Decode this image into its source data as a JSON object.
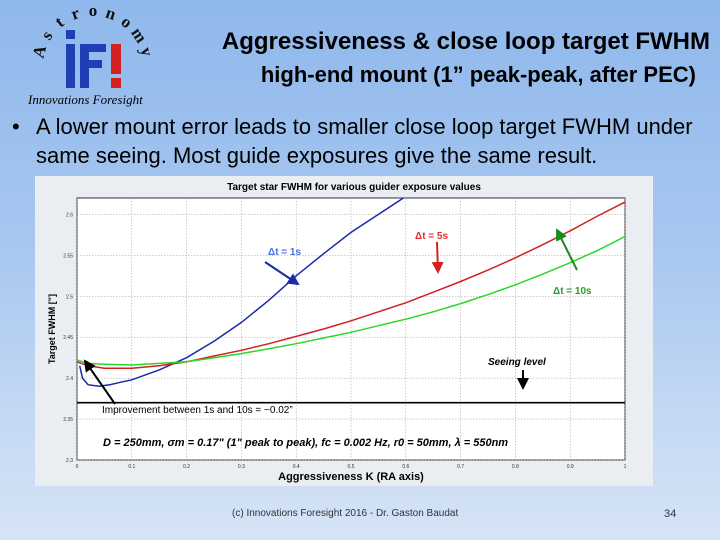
{
  "logo": {
    "arc_letters": [
      "A",
      "s",
      "t",
      "r",
      "o",
      "n",
      "o",
      "m",
      "y"
    ],
    "mark": "iFI",
    "caption": "Innovations Foresight"
  },
  "title": {
    "line1": "Aggressiveness & close loop target FWHM",
    "line2": "high-end mount (1” peak-peak, after PEC)"
  },
  "bullet": {
    "marker": "•",
    "text": "A lower mount error leads to smaller close loop target FWHM under same seeing. Most guide exposures give the same result."
  },
  "chart_data": {
    "type": "line",
    "title": "Target star FWHM for various guider exposure values",
    "xlabel": "Aggressiveness K (RA axis)",
    "ylabel": "Target FWHM [\"]",
    "xlim": [
      0,
      1
    ],
    "ylim": [
      2.3,
      2.62
    ],
    "xticks": [
      0,
      0.1,
      0.2,
      0.3,
      0.4,
      0.5,
      0.6,
      0.7,
      0.8,
      0.9,
      1
    ],
    "xtick_labels": [
      "0",
      "0.1",
      "0.2",
      "0.3",
      "0.4",
      "0.5",
      "0.6",
      "0.7",
      "0.8",
      "0.9",
      "1"
    ],
    "yticks": [
      2.3,
      2.35,
      2.4,
      2.45,
      2.5,
      2.55,
      2.6
    ],
    "ytick_labels": [
      "2.3",
      "2.35",
      "2.4",
      "2.45",
      "2.5",
      "2.55",
      "2.6"
    ],
    "grid": true,
    "series": [
      {
        "name": "Δt = 1s",
        "color": "#1a2aa8",
        "x": [
          0.005,
          0.01,
          0.02,
          0.04,
          0.06,
          0.08,
          0.1,
          0.15,
          0.2,
          0.25,
          0.3,
          0.35,
          0.4,
          0.45,
          0.5,
          0.55,
          0.6,
          0.62
        ],
        "y": [
          2.415,
          2.4,
          2.392,
          2.39,
          2.392,
          2.395,
          2.398,
          2.41,
          2.425,
          2.445,
          2.468,
          2.495,
          2.525,
          2.552,
          2.578,
          2.6,
          2.622,
          2.63
        ]
      },
      {
        "name": "Δt = 5s",
        "color": "#d42020",
        "x": [
          0,
          0.02,
          0.05,
          0.1,
          0.15,
          0.2,
          0.25,
          0.3,
          0.35,
          0.4,
          0.45,
          0.5,
          0.55,
          0.6,
          0.65,
          0.7,
          0.75,
          0.8,
          0.85,
          0.9,
          0.95,
          1
        ],
        "y": [
          2.42,
          2.415,
          2.412,
          2.412,
          2.415,
          2.42,
          2.427,
          2.434,
          2.442,
          2.451,
          2.46,
          2.47,
          2.481,
          2.492,
          2.505,
          2.518,
          2.532,
          2.547,
          2.563,
          2.58,
          2.598,
          2.615
        ]
      },
      {
        "name": "Δt = 10s",
        "color": "#29d82a",
        "x": [
          0,
          0.02,
          0.05,
          0.1,
          0.15,
          0.2,
          0.25,
          0.3,
          0.35,
          0.4,
          0.45,
          0.5,
          0.55,
          0.6,
          0.65,
          0.7,
          0.75,
          0.8,
          0.85,
          0.9,
          0.95,
          1
        ],
        "y": [
          2.422,
          2.418,
          2.417,
          2.416,
          2.418,
          2.42,
          2.425,
          2.43,
          2.436,
          2.442,
          2.449,
          2.456,
          2.464,
          2.472,
          2.481,
          2.491,
          2.502,
          2.514,
          2.527,
          2.541,
          2.556,
          2.573
        ]
      },
      {
        "name": "Seeing level",
        "color": "#000000",
        "x": [
          0,
          1
        ],
        "y": [
          2.37,
          2.37
        ]
      }
    ],
    "annotations": [
      {
        "text": "Δt = 1s",
        "color": "#4a6fe0"
      },
      {
        "text": "Δt = 5s",
        "color": "#e03030"
      },
      {
        "text": "Δt = 10s",
        "color": "#2c9c2c"
      },
      {
        "text": "Seeing level",
        "color": "#000000"
      },
      {
        "text": "Improvement between 1s and 10s = ~0.02”",
        "color": "#000000"
      },
      {
        "text": "D = 250mm, σm = 0.17\" (1\" peak to peak), fc = 0.002 Hz, r0 = 50mm, λ = 550nm",
        "color": "#000000"
      }
    ]
  },
  "footer": {
    "credit": "(c) Innovations Foresight 2016 - Dr. Gaston Baudat",
    "page": "34"
  }
}
